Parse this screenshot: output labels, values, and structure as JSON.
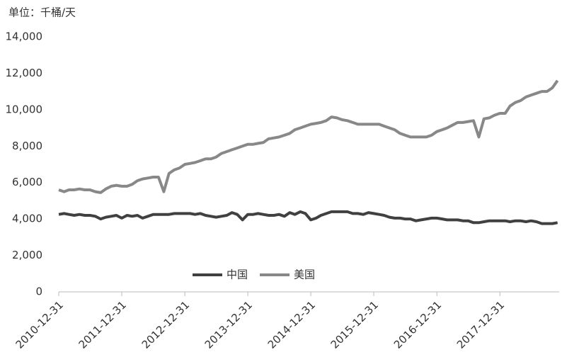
{
  "chart_data": {
    "type": "line",
    "title": "单位：千桶/天",
    "x": [
      "2010-12-31",
      "2011-01-31",
      "2011-02-28",
      "2011-03-31",
      "2011-04-30",
      "2011-05-31",
      "2011-06-30",
      "2011-07-31",
      "2011-08-31",
      "2011-09-30",
      "2011-10-31",
      "2011-11-30",
      "2011-12-31",
      "2012-01-31",
      "2012-02-29",
      "2012-03-31",
      "2012-04-30",
      "2012-05-31",
      "2012-06-30",
      "2012-07-31",
      "2012-08-31",
      "2012-09-30",
      "2012-10-31",
      "2012-11-30",
      "2012-12-31",
      "2013-01-31",
      "2013-02-28",
      "2013-03-31",
      "2013-04-30",
      "2013-05-31",
      "2013-06-30",
      "2013-07-31",
      "2013-08-31",
      "2013-09-30",
      "2013-10-31",
      "2013-11-30",
      "2013-12-31",
      "2014-01-31",
      "2014-02-28",
      "2014-03-31",
      "2014-04-30",
      "2014-05-31",
      "2014-06-30",
      "2014-07-31",
      "2014-08-31",
      "2014-09-30",
      "2014-10-31",
      "2014-11-30",
      "2014-12-31",
      "2015-01-31",
      "2015-02-28",
      "2015-03-31",
      "2015-04-30",
      "2015-05-31",
      "2015-06-30",
      "2015-07-31",
      "2015-08-31",
      "2015-09-30",
      "2015-10-31",
      "2015-11-30",
      "2015-12-31",
      "2016-01-31",
      "2016-02-29",
      "2016-03-31",
      "2016-04-30",
      "2016-05-31",
      "2016-06-30",
      "2016-07-31",
      "2016-08-31",
      "2016-09-30",
      "2016-10-31",
      "2016-11-30",
      "2016-12-31",
      "2017-01-31",
      "2017-02-28",
      "2017-03-31",
      "2017-04-30",
      "2017-05-31",
      "2017-06-30",
      "2017-07-31",
      "2017-08-31",
      "2017-09-30",
      "2017-10-31",
      "2017-11-30",
      "2017-12-31",
      "2018-01-31",
      "2018-02-28",
      "2018-03-31",
      "2018-04-30",
      "2018-05-31",
      "2018-06-30",
      "2018-07-31",
      "2018-08-31",
      "2018-09-30",
      "2018-10-31",
      "2018-11-30"
    ],
    "series": [
      {
        "name": "中国",
        "color": "#404040",
        "values": [
          4250,
          4300,
          4250,
          4200,
          4250,
          4200,
          4200,
          4150,
          4000,
          4100,
          4150,
          4200,
          4050,
          4200,
          4150,
          4200,
          4050,
          4150,
          4250,
          4250,
          4250,
          4250,
          4300,
          4300,
          4300,
          4300,
          4250,
          4300,
          4200,
          4150,
          4100,
          4150,
          4200,
          4350,
          4250,
          3950,
          4250,
          4250,
          4300,
          4250,
          4200,
          4200,
          4250,
          4150,
          4350,
          4250,
          4400,
          4300,
          3950,
          4050,
          4200,
          4300,
          4400,
          4400,
          4400,
          4400,
          4300,
          4300,
          4250,
          4350,
          4300,
          4250,
          4200,
          4100,
          4050,
          4050,
          4000,
          4000,
          3900,
          3950,
          4000,
          4050,
          4050,
          4000,
          3950,
          3950,
          3950,
          3900,
          3900,
          3800,
          3800,
          3850,
          3900,
          3900,
          3900,
          3900,
          3850,
          3900,
          3900,
          3850,
          3900,
          3850,
          3750,
          3750,
          3750,
          3800
        ]
      },
      {
        "name": "美国",
        "color": "#888888",
        "values": [
          5600,
          5500,
          5600,
          5600,
          5650,
          5600,
          5600,
          5500,
          5450,
          5650,
          5800,
          5850,
          5800,
          5800,
          5900,
          6100,
          6200,
          6250,
          6300,
          6300,
          5500,
          6500,
          6700,
          6800,
          7000,
          7050,
          7100,
          7200,
          7300,
          7300,
          7400,
          7600,
          7700,
          7800,
          7900,
          8000,
          8100,
          8100,
          8150,
          8200,
          8400,
          8450,
          8500,
          8600,
          8700,
          8900,
          9000,
          9100,
          9200,
          9250,
          9300,
          9400,
          9600,
          9550,
          9450,
          9400,
          9300,
          9200,
          9200,
          9200,
          9200,
          9200,
          9100,
          9000,
          8900,
          8700,
          8600,
          8500,
          8500,
          8500,
          8500,
          8600,
          8800,
          8900,
          9000,
          9150,
          9300,
          9300,
          9350,
          9400,
          8500,
          9500,
          9550,
          9700,
          9800,
          9800,
          10200,
          10400,
          10500,
          10700,
          10800,
          10900,
          11000,
          11000,
          11200,
          11600
        ]
      }
    ],
    "xlim": [
      "2010-12-31",
      "2018-12-10"
    ],
    "xticks": [
      "2010-12-31",
      "2011-12-31",
      "2012-12-31",
      "2013-12-31",
      "2014-12-31",
      "2015-12-31",
      "2016-12-31",
      "2017-12-31"
    ],
    "ylim": [
      0,
      14000
    ],
    "yticks": [
      0,
      {
        "value": 2000,
        "label": "2,000"
      },
      {
        "value": 4000,
        "label": "4,000"
      },
      {
        "value": 6000,
        "label": "6,000"
      },
      {
        "value": 8000,
        "label": "8,000"
      },
      {
        "value": 10000,
        "label": "10,000"
      },
      {
        "value": 12000,
        "label": "12,000"
      },
      {
        "value": 14000,
        "label": "14,000"
      }
    ],
    "grid": false,
    "legend": "bottom"
  }
}
